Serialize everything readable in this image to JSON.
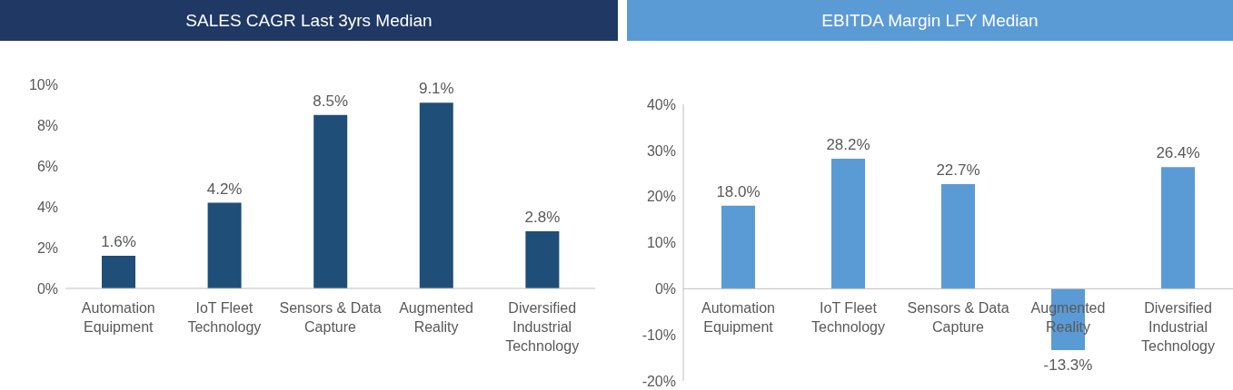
{
  "chart_data": [
    {
      "type": "bar",
      "title": "SALES CAGR Last 3yrs Median",
      "categories": [
        "Automation Equipment",
        "IoT Fleet Technology",
        "Sensors & Data Capture",
        "Augmented Reality",
        "Diversified Industrial Technology"
      ],
      "values": [
        1.6,
        4.2,
        8.5,
        9.1,
        2.8
      ],
      "value_labels": [
        "1.6%",
        "4.2%",
        "8.5%",
        "9.1%",
        "2.8%"
      ],
      "color": "#1f4e79",
      "ylim": [
        0,
        10
      ],
      "yticks": [
        {
          "value": 0,
          "label": "0%"
        },
        {
          "value": 2,
          "label": "2%"
        },
        {
          "value": 4,
          "label": "4%"
        },
        {
          "value": 6,
          "label": "6%"
        },
        {
          "value": 8,
          "label": "8%"
        },
        {
          "value": 10,
          "label": "10%"
        }
      ],
      "grid": false,
      "legend": false
    },
    {
      "type": "bar",
      "title": "EBITDA Margin LFY Median",
      "categories": [
        "Automation Equipment",
        "IoT Fleet Technology",
        "Sensors & Data Capture",
        "Augmented Reality",
        "Diversified Industrial Technology"
      ],
      "values": [
        18.0,
        28.2,
        22.7,
        -13.3,
        26.4
      ],
      "value_labels": [
        "18.0%",
        "28.2%",
        "22.7%",
        "-13.3%",
        "26.4%"
      ],
      "color": "#5b9bd5",
      "ylim": [
        -20,
        40
      ],
      "yticks": [
        {
          "value": -20,
          "label": "-20%"
        },
        {
          "value": -10,
          "label": "-10%"
        },
        {
          "value": 0,
          "label": "0%"
        },
        {
          "value": 10,
          "label": "10%"
        },
        {
          "value": 20,
          "label": "20%"
        },
        {
          "value": 30,
          "label": "30%"
        },
        {
          "value": 40,
          "label": "40%"
        }
      ],
      "grid": false,
      "legend": false
    }
  ]
}
